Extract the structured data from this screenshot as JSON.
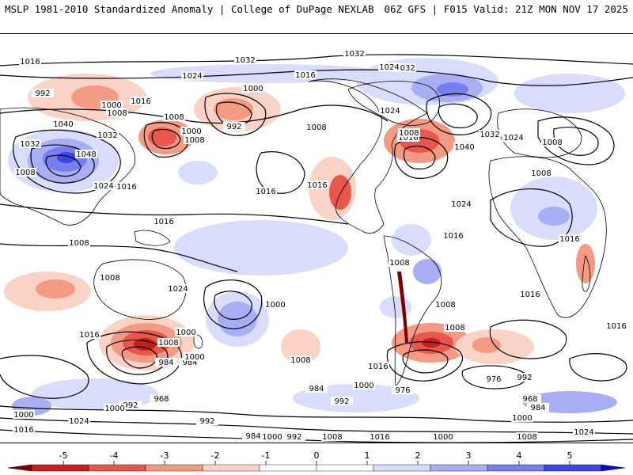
{
  "header": {
    "left": "MSLP 1981-2010 Standardized Anomaly | College of DuPage NEXLAB",
    "right": "06Z GFS | F015 Valid: 21Z MON NOV 17 2025"
  },
  "colors": {
    "neg5": "#7a0000",
    "neg4": "#c81e1e",
    "neg3": "#e8574b",
    "neg2": "#f39a85",
    "neg1": "#fbd2c6",
    "zero": "#ffffff",
    "pos1": "#d9dcfb",
    "pos2": "#a9aef5",
    "pos3": "#777ff0",
    "pos4": "#3d45e6",
    "pos5": "#0a0ad0",
    "land": "#000000",
    "isobar": "#000000"
  },
  "colorbar": {
    "ticks": [
      "-5",
      "-4",
      "-3",
      "-2",
      "-1",
      "0",
      "1",
      "2",
      "3",
      "4",
      "5"
    ]
  },
  "isobar_labels": [
    "1016",
    "1032",
    "1032",
    "1024",
    "1016",
    "1032",
    "992",
    "1000",
    "1016",
    "1000",
    "1008",
    "1008",
    "992",
    "1040",
    "1032",
    "1032",
    "1048",
    "1008",
    "1000",
    "1008",
    "1024",
    "1016",
    "1024",
    "1040",
    "1032",
    "1024",
    "1016",
    "1008",
    "1016",
    "1024",
    "1016",
    "1008",
    "1024",
    "1016",
    "1008",
    "1008",
    "1016",
    "1008",
    "1016",
    "1008",
    "1024",
    "1008",
    "1008",
    "1016",
    "1000",
    "1008",
    "984",
    "968",
    "1016",
    "1008",
    "984",
    "1000",
    "992",
    "1000",
    "984",
    "976",
    "976",
    "992",
    "968",
    "1000",
    "984",
    "1008",
    "1000",
    "1000",
    "1016",
    "992",
    "992",
    "1024",
    "1016",
    "1000",
    "992",
    "984",
    "1000",
    "992",
    "1008",
    "1016",
    "1000",
    "1008",
    "1024",
    "1016"
  ]
}
